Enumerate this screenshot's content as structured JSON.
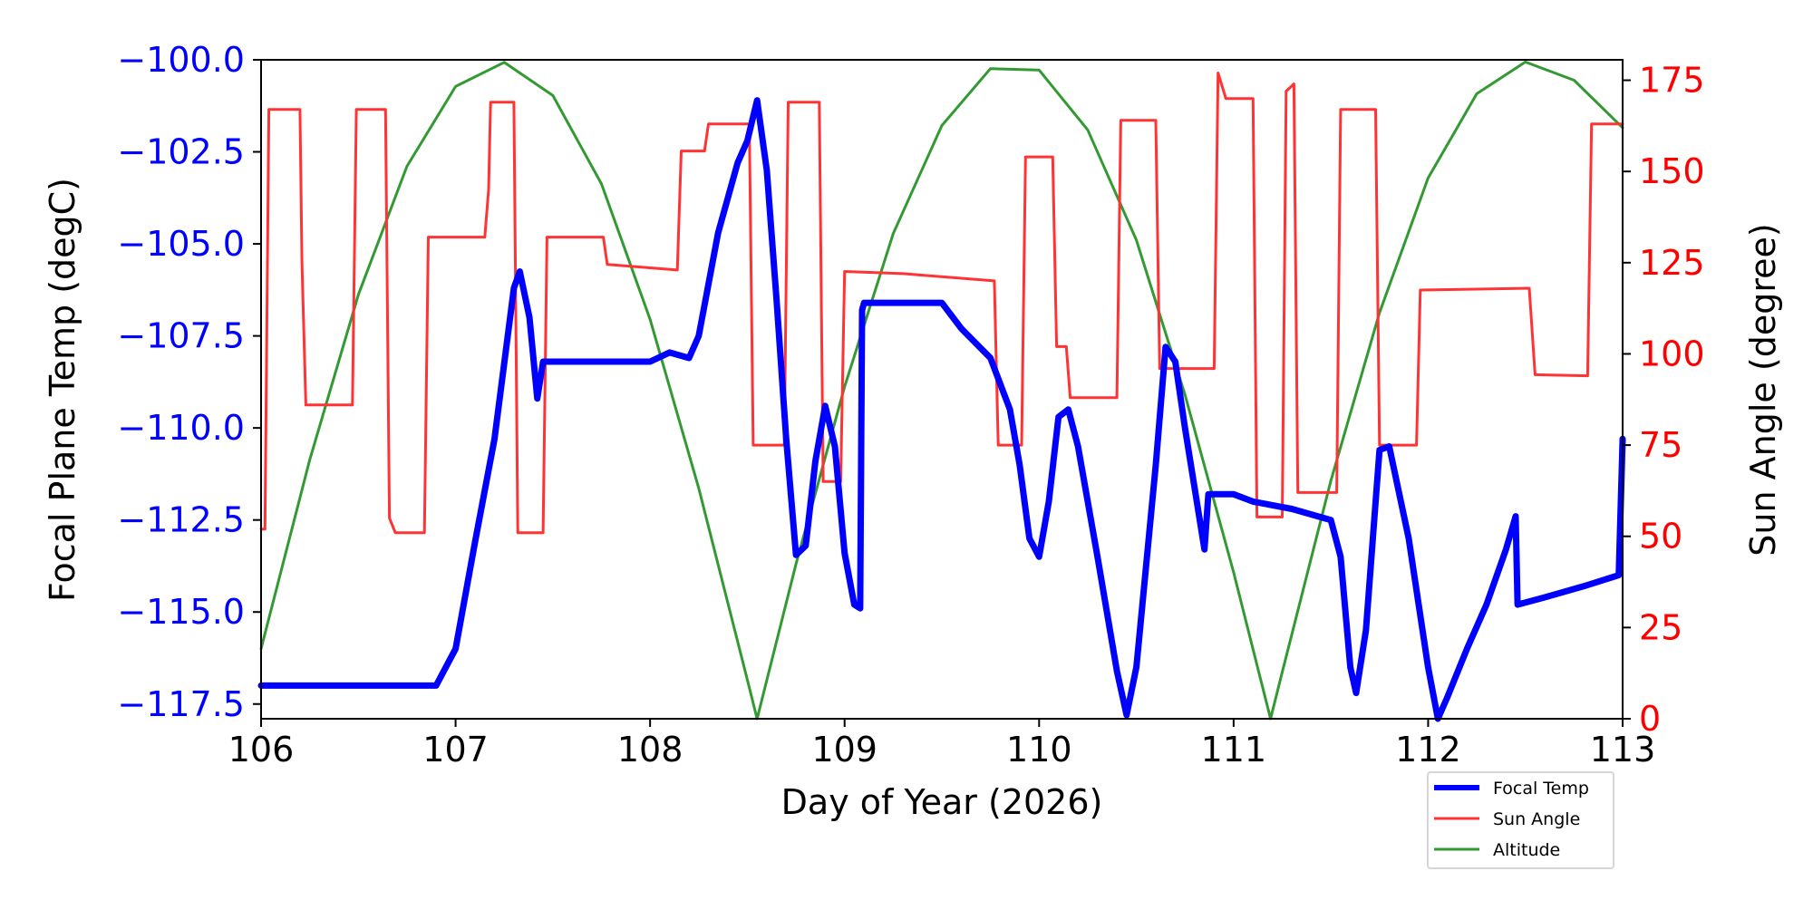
{
  "chart_data": {
    "type": "line",
    "xlabel": "Day of Year (2026)",
    "ylabel_left": "Focal Plane Temp (degC)",
    "ylabel_right": "Sun Angle (degree)",
    "xlim": [
      106,
      113
    ],
    "ylim_left": [
      -117.9,
      -100
    ],
    "ylim_right": [
      0,
      180.6
    ],
    "x_ticks": [
      "106",
      "107",
      "108",
      "109",
      "110",
      "111",
      "112",
      "113"
    ],
    "x_tick_values": [
      106,
      107,
      108,
      109,
      110,
      111,
      112,
      113
    ],
    "y_left_ticks": [
      "−100.0",
      "−102.5",
      "−105.0",
      "−107.5",
      "−110.0",
      "−112.5",
      "−115.0",
      "−117.5"
    ],
    "y_left_tick_values": [
      -100,
      -102.5,
      -105,
      -107.5,
      -110,
      -112.5,
      -115,
      -117.5
    ],
    "y_right_ticks": [
      "0",
      "25",
      "50",
      "75",
      "100",
      "125",
      "150",
      "175"
    ],
    "y_right_tick_values": [
      0,
      25,
      50,
      75,
      100,
      125,
      150,
      175
    ],
    "grid": false,
    "legend": {
      "placement": "bottom-right, outside below plot",
      "entries": [
        "Focal Temp",
        "Sun Angle",
        "Altitude"
      ]
    },
    "colors": {
      "focal": "#0000ff",
      "sun": "#ff3333",
      "altitude": "#339933",
      "left_axis": "#0000ff",
      "right_axis": "#ff0000"
    },
    "series": [
      {
        "name": "Focal Temp",
        "axis": "left",
        "points": [
          [
            106.0,
            -117.0
          ],
          [
            106.9,
            -117.0
          ],
          [
            107.0,
            -116.0
          ],
          [
            107.1,
            -113.1
          ],
          [
            107.2,
            -110.3
          ],
          [
            107.3,
            -106.2
          ],
          [
            107.33,
            -105.75
          ],
          [
            107.38,
            -107.0
          ],
          [
            107.42,
            -109.2
          ],
          [
            107.45,
            -108.2
          ],
          [
            108.0,
            -108.2
          ],
          [
            108.1,
            -107.95
          ],
          [
            108.2,
            -108.1
          ],
          [
            108.25,
            -107.5
          ],
          [
            108.35,
            -104.7
          ],
          [
            108.45,
            -102.8
          ],
          [
            108.5,
            -102.2
          ],
          [
            108.55,
            -101.1
          ],
          [
            108.6,
            -103.0
          ],
          [
            108.65,
            -106.5
          ],
          [
            108.7,
            -110.3
          ],
          [
            108.75,
            -113.45
          ],
          [
            108.8,
            -113.2
          ],
          [
            108.85,
            -110.9
          ],
          [
            108.9,
            -109.4
          ],
          [
            108.95,
            -110.5
          ],
          [
            109.0,
            -113.4
          ],
          [
            109.05,
            -114.8
          ],
          [
            109.08,
            -114.9
          ],
          [
            109.09,
            -106.8
          ],
          [
            109.1,
            -106.6
          ],
          [
            109.5,
            -106.6
          ],
          [
            109.6,
            -107.3
          ],
          [
            109.75,
            -108.1
          ],
          [
            109.85,
            -109.5
          ],
          [
            109.9,
            -111.0
          ],
          [
            109.95,
            -113.0
          ],
          [
            110.0,
            -113.5
          ],
          [
            110.05,
            -112.0
          ],
          [
            110.1,
            -109.7
          ],
          [
            110.15,
            -109.5
          ],
          [
            110.2,
            -110.5
          ],
          [
            110.3,
            -113.5
          ],
          [
            110.4,
            -116.6
          ],
          [
            110.45,
            -117.8
          ],
          [
            110.5,
            -116.5
          ],
          [
            110.6,
            -111.0
          ],
          [
            110.65,
            -107.8
          ],
          [
            110.7,
            -108.2
          ],
          [
            110.75,
            -110.0
          ],
          [
            110.85,
            -113.3
          ],
          [
            110.87,
            -111.8
          ],
          [
            111.0,
            -111.8
          ],
          [
            111.1,
            -112.0
          ],
          [
            111.3,
            -112.2
          ],
          [
            111.5,
            -112.5
          ],
          [
            111.55,
            -113.5
          ],
          [
            111.6,
            -116.5
          ],
          [
            111.63,
            -117.2
          ],
          [
            111.68,
            -115.5
          ],
          [
            111.75,
            -110.6
          ],
          [
            111.8,
            -110.5
          ],
          [
            111.9,
            -113.0
          ],
          [
            112.0,
            -116.5
          ],
          [
            112.05,
            -117.9
          ],
          [
            112.1,
            -117.3
          ],
          [
            112.2,
            -116.0
          ],
          [
            112.3,
            -114.8
          ],
          [
            112.4,
            -113.3
          ],
          [
            112.45,
            -112.4
          ],
          [
            112.46,
            -114.8
          ],
          [
            112.6,
            -114.6
          ],
          [
            112.8,
            -114.3
          ],
          [
            112.98,
            -114.0
          ],
          [
            113.0,
            -110.3
          ]
        ]
      },
      {
        "name": "Sun Angle",
        "axis": "right",
        "points": [
          [
            106.0,
            52
          ],
          [
            106.02,
            52
          ],
          [
            106.04,
            167
          ],
          [
            106.2,
            167
          ],
          [
            106.21,
            125
          ],
          [
            106.23,
            86
          ],
          [
            106.47,
            86
          ],
          [
            106.49,
            167
          ],
          [
            106.64,
            167
          ],
          [
            106.66,
            55
          ],
          [
            106.69,
            51
          ],
          [
            106.84,
            51
          ],
          [
            106.86,
            132
          ],
          [
            107.15,
            132
          ],
          [
            107.17,
            145
          ],
          [
            107.18,
            169
          ],
          [
            107.3,
            169
          ],
          [
            107.32,
            51
          ],
          [
            107.45,
            51
          ],
          [
            107.47,
            132
          ],
          [
            107.76,
            132
          ],
          [
            107.78,
            124.5
          ],
          [
            108.14,
            123
          ],
          [
            108.16,
            155.6
          ],
          [
            108.28,
            155.6
          ],
          [
            108.3,
            163
          ],
          [
            108.51,
            163
          ],
          [
            108.53,
            75
          ],
          [
            108.69,
            75
          ],
          [
            108.71,
            169
          ],
          [
            108.87,
            169
          ],
          [
            108.89,
            65
          ],
          [
            108.98,
            65
          ],
          [
            109.0,
            122.6
          ],
          [
            109.3,
            122
          ],
          [
            109.77,
            120
          ],
          [
            109.79,
            75
          ],
          [
            109.91,
            75
          ],
          [
            109.93,
            154
          ],
          [
            110.07,
            154
          ],
          [
            110.09,
            102
          ],
          [
            110.14,
            102
          ],
          [
            110.16,
            88
          ],
          [
            110.4,
            88
          ],
          [
            110.42,
            164
          ],
          [
            110.6,
            164
          ],
          [
            110.62,
            96
          ],
          [
            110.9,
            96
          ],
          [
            110.92,
            177
          ],
          [
            110.96,
            170
          ],
          [
            111.1,
            170
          ],
          [
            111.12,
            55.3
          ],
          [
            111.25,
            55.3
          ],
          [
            111.27,
            172
          ],
          [
            111.31,
            174
          ],
          [
            111.33,
            62
          ],
          [
            111.53,
            62
          ],
          [
            111.55,
            167
          ],
          [
            111.73,
            167
          ],
          [
            111.75,
            75
          ],
          [
            111.94,
            75
          ],
          [
            111.96,
            117.5
          ],
          [
            112.52,
            118
          ],
          [
            112.55,
            94.3
          ],
          [
            112.82,
            94
          ],
          [
            112.84,
            163
          ],
          [
            113.0,
            163
          ]
        ]
      },
      {
        "name": "Altitude",
        "axis": "right",
        "points": [
          [
            106.0,
            19.2
          ],
          [
            106.25,
            70.9
          ],
          [
            106.5,
            116.2
          ],
          [
            106.75,
            151.4
          ],
          [
            107.0,
            173.3
          ],
          [
            107.25,
            179.9
          ],
          [
            107.5,
            170.8
          ],
          [
            107.75,
            146.6
          ],
          [
            108.0,
            109.5
          ],
          [
            108.25,
            63.2
          ],
          [
            108.5,
            10.7
          ],
          [
            108.55,
            0
          ],
          [
            108.75,
            42.4
          ],
          [
            109.0,
            91.0
          ],
          [
            109.25,
            133.0
          ],
          [
            109.5,
            162.6
          ],
          [
            109.75,
            178.2
          ],
          [
            110.0,
            177.8
          ],
          [
            110.25,
            161.4
          ],
          [
            110.5,
            131.2
          ],
          [
            110.75,
            88.8
          ],
          [
            111.0,
            40.1
          ],
          [
            111.19,
            0
          ],
          [
            111.25,
            12.8
          ],
          [
            111.5,
            65.2
          ],
          [
            111.75,
            111.3
          ],
          [
            112.0,
            148.2
          ],
          [
            112.25,
            171.3
          ],
          [
            112.5,
            180
          ],
          [
            112.75,
            175
          ],
          [
            113.0,
            162
          ]
        ]
      }
    ]
  }
}
